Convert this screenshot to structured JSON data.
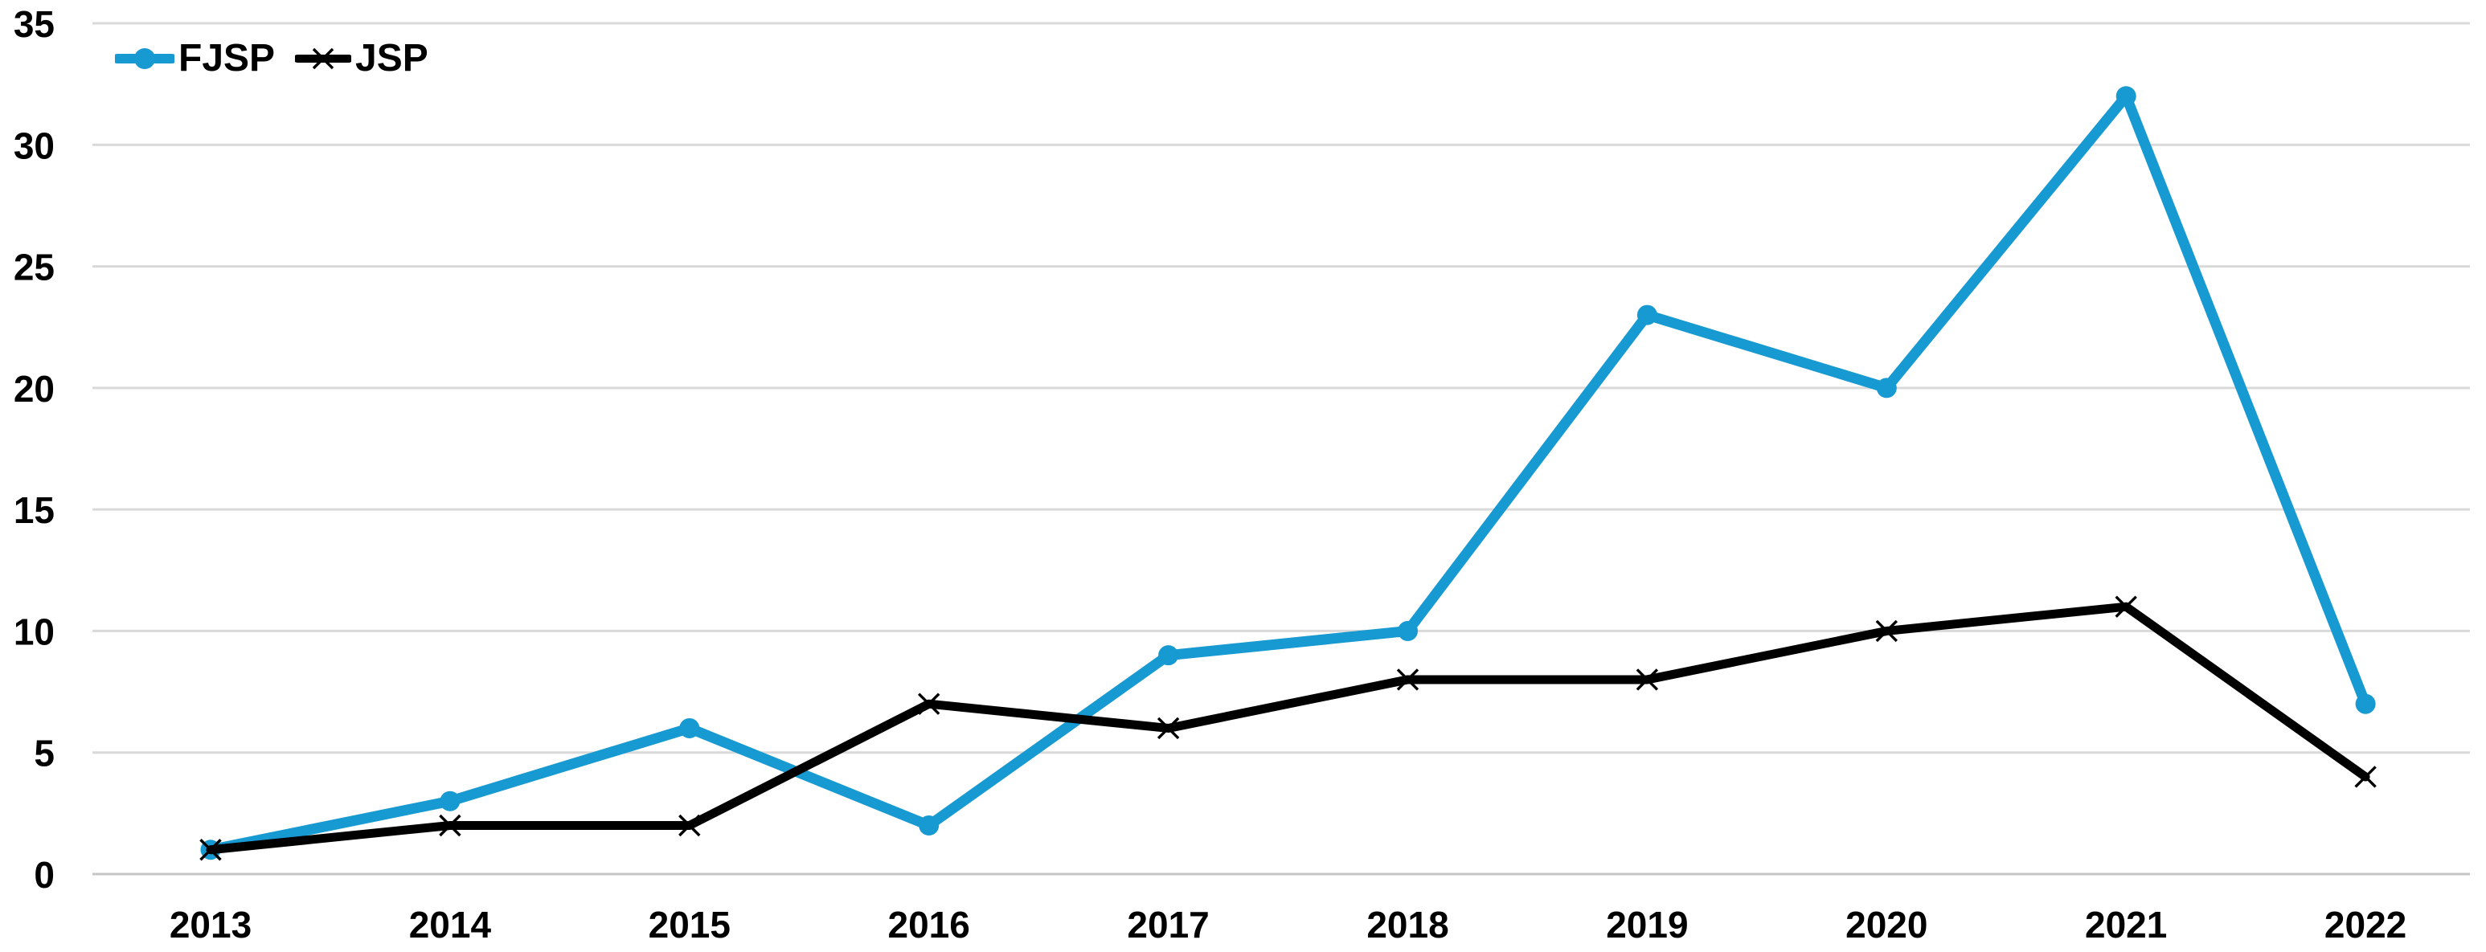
{
  "chart_data": {
    "type": "line",
    "title": "",
    "xlabel": "",
    "ylabel": "",
    "categories": [
      "2013",
      "2014",
      "2015",
      "2016",
      "2017",
      "2018",
      "2019",
      "2020",
      "2021",
      "2022"
    ],
    "series": [
      {
        "name": "FJSP",
        "marker": "circle",
        "color": "#1799D1",
        "values": [
          1,
          3,
          6,
          2,
          9,
          10,
          23,
          20,
          32,
          7
        ]
      },
      {
        "name": "JSP",
        "marker": "x",
        "color": "#000000",
        "values": [
          1,
          2,
          2,
          7,
          6,
          8,
          8,
          10,
          11,
          4
        ]
      }
    ],
    "ylim": [
      0,
      35
    ],
    "yticks": [
      0,
      5,
      10,
      15,
      20,
      25,
      30,
      35
    ],
    "grid": "horizontal",
    "gridline_color": "#D9D9D9",
    "axis_line_color": "#C6C6C6",
    "tick_label_color": "#000000",
    "legend_position": "top-left"
  }
}
